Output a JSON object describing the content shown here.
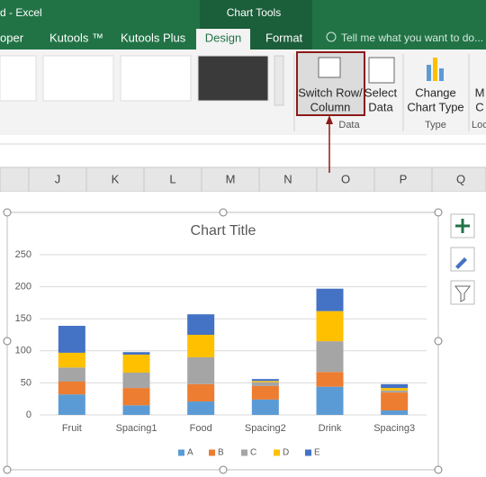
{
  "window": {
    "title": "d - Excel",
    "context_tab": "Chart Tools"
  },
  "tabs": [
    "oper",
    "Kutools ™",
    "Kutools Plus",
    "Design",
    "Format"
  ],
  "search": "Tell me what you want to do...",
  "ribbon": {
    "buttons": [
      {
        "lines": [
          "Switch Row/",
          "Column"
        ]
      },
      {
        "lines": [
          "Select",
          "Data"
        ]
      },
      {
        "lines": [
          "Change",
          "Chart Type"
        ]
      },
      {
        "lines": [
          "M",
          "C"
        ]
      }
    ],
    "groups": [
      "Data",
      "Type",
      "Loc"
    ]
  },
  "columns": [
    "J",
    "K",
    "L",
    "M",
    "N",
    "O",
    "P",
    "Q"
  ],
  "chart_data": {
    "type": "stacked_bar",
    "title": "Chart Title",
    "categories": [
      "Fruit",
      "Spacing1",
      "Food",
      "Spacing2",
      "Drink",
      "Spacing3"
    ],
    "series": [
      {
        "name": "A",
        "color": "#5b9bd5",
        "values": [
          32,
          15,
          21,
          24,
          44,
          7
        ]
      },
      {
        "name": "B",
        "color": "#ed7d31",
        "values": [
          20,
          27,
          27,
          21,
          23,
          28
        ]
      },
      {
        "name": "C",
        "color": "#a5a5a5",
        "values": [
          22,
          24,
          42,
          6,
          48,
          3
        ]
      },
      {
        "name": "D",
        "color": "#ffc000",
        "values": [
          23,
          28,
          35,
          2,
          47,
          4
        ]
      },
      {
        "name": "E",
        "color": "#4472c4",
        "values": [
          42,
          4,
          32,
          3,
          35,
          6
        ]
      }
    ],
    "ylim": [
      0,
      250
    ],
    "yticks": [
      0,
      50,
      100,
      150,
      200,
      250
    ],
    "grid": true,
    "legend": "bottom"
  }
}
